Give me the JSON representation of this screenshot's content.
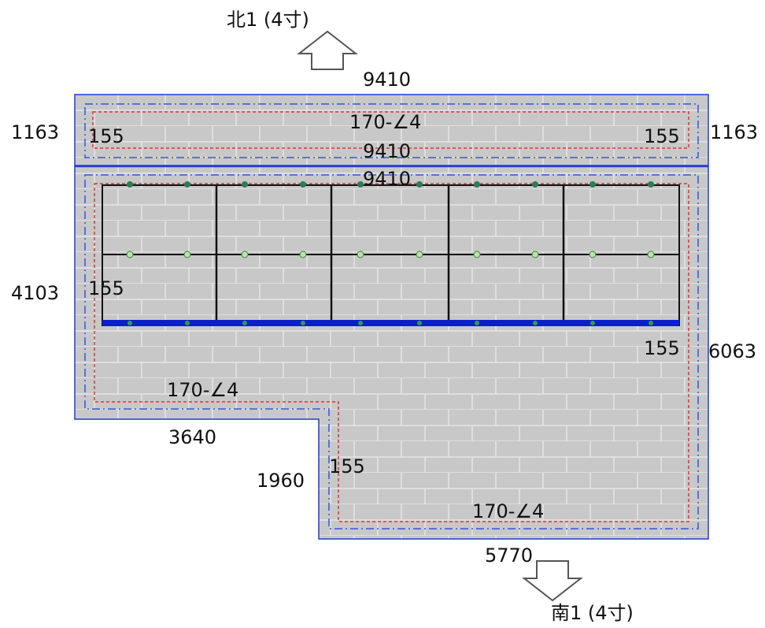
{
  "colors": {
    "roof_fill": "#c8c8c8",
    "tile_line": "#e6e6e6",
    "outline_blue": "#1f3fd6",
    "dashdot_blue": "#3355dd",
    "eave_red": "#e53030",
    "panel_frame": "#111111",
    "panel_bar": "#0a1fcc",
    "point_dark": "#2e7d4f",
    "point_light": "#b8e6a8"
  },
  "directions": {
    "north": {
      "label": "北1 (4寸)",
      "icon": "arrow-up-outline-icon"
    },
    "south": {
      "label": "南1 (4寸)",
      "icon": "arrow-down-outline-icon"
    }
  },
  "dimensions": {
    "top_width": "9410",
    "top_left_height": "1163",
    "top_right_height": "1163",
    "top_inner_width": "9410",
    "panel_width": "9410",
    "left_height": "4103",
    "right_height": "6063",
    "notch_width": "3640",
    "notch_height": "1960",
    "bottom_width": "5770"
  },
  "annotations": {
    "top_spec": "170-∠4",
    "top_left_margin": "155",
    "top_right_margin": "155",
    "main_left_margin": "155",
    "main_right_margin": "155",
    "left_spec": "170-∠4",
    "notch_margin": "155",
    "bottom_spec": "170-∠4"
  }
}
